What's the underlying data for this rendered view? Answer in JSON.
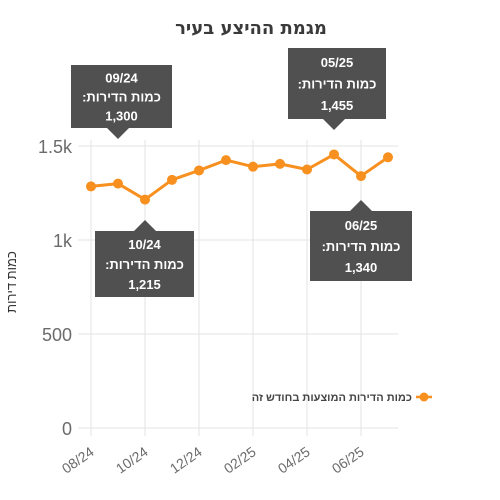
{
  "chart_data": {
    "type": "line",
    "title": "מגמת ההיצע בעיר",
    "ylabel": "כמות דירות",
    "xlabel": "",
    "x": [
      "08/24",
      "09/24",
      "10/24",
      "11/24",
      "12/24",
      "01/25",
      "02/25",
      "03/25",
      "04/25",
      "05/25",
      "06/25",
      "07/25"
    ],
    "x_tick_labels": [
      "08/24",
      "10/24",
      "12/24",
      "02/25",
      "04/25",
      "06/25"
    ],
    "y_ticks": [
      {
        "value": 0,
        "label": "0"
      },
      {
        "value": 500,
        "label": "500"
      },
      {
        "value": 1000,
        "label": "1k"
      },
      {
        "value": 1500,
        "label": "1.5k"
      }
    ],
    "ylim": [
      0,
      1550
    ],
    "grid": true,
    "legend_position": "right",
    "series": [
      {
        "name": "כמות הדירות המוצעות בחודש זה",
        "color": "#f7901e",
        "values": [
          1285,
          1300,
          1215,
          1320,
          1370,
          1425,
          1390,
          1405,
          1375,
          1455,
          1340,
          1440
        ]
      }
    ],
    "tooltips": [
      {
        "date": "09/24",
        "label": "כמות הדירות:",
        "value": "1,300"
      },
      {
        "date": "05/25",
        "label": "כמות הדירות:",
        "value": "1,455"
      },
      {
        "date": "10/24",
        "label": "כמות הדירות:",
        "value": "1,215"
      },
      {
        "date": "06/25",
        "label": "כמות הדירות:",
        "value": "1,340"
      }
    ]
  }
}
